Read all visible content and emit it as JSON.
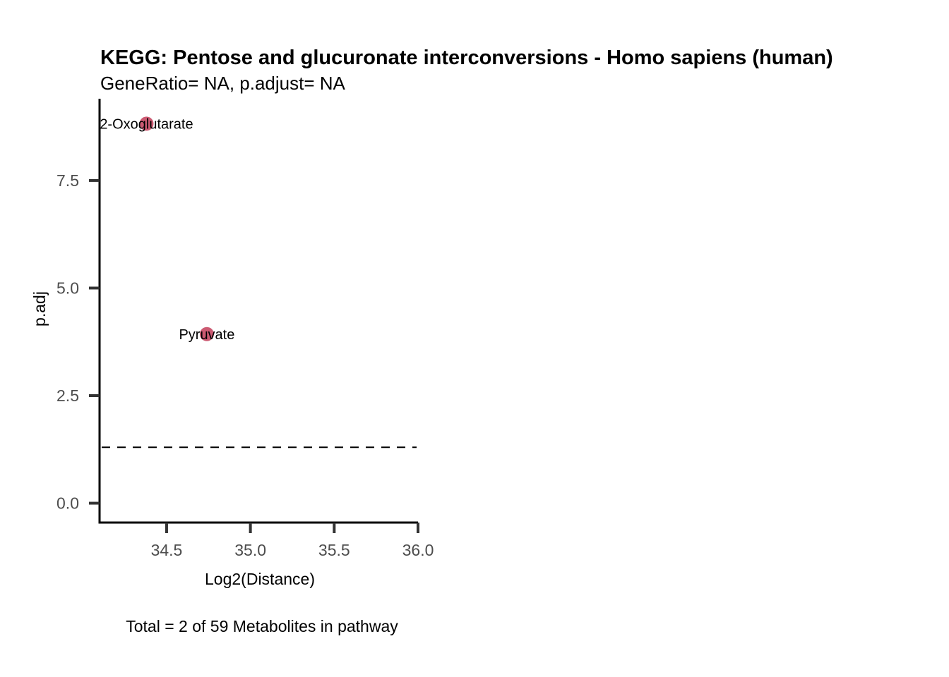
{
  "chart_data": {
    "type": "scatter",
    "title": "KEGG: Pentose and glucuronate interconversions - Homo sapiens (human)",
    "subtitle": "GeneRatio= NA, p.adjust= NA",
    "xlabel": "Log2(Distance)",
    "ylabel": "p.adj",
    "caption": "Total = 2 of 59 Metabolites in pathway",
    "xlim": [
      34.1,
      36.0
    ],
    "ylim": [
      -0.45,
      9.4
    ],
    "xticks": [
      34.5,
      35.0,
      35.5,
      36.0
    ],
    "xtick_labels": [
      "34.5",
      "35.0",
      "35.5",
      "36.0"
    ],
    "yticks": [
      0.0,
      2.5,
      5.0,
      7.5
    ],
    "ytick_labels": [
      "0.0",
      "2.5",
      "5.0",
      "7.5"
    ],
    "threshold": {
      "y": 1.3,
      "style": "dashed"
    },
    "grid": false,
    "legend": "none",
    "point_color": "#cc5a72",
    "points": [
      {
        "label": "2-Oxoglutarate",
        "x": 34.38,
        "y": 8.82
      },
      {
        "label": "Pyruvate",
        "x": 34.74,
        "y": 3.93
      }
    ]
  }
}
